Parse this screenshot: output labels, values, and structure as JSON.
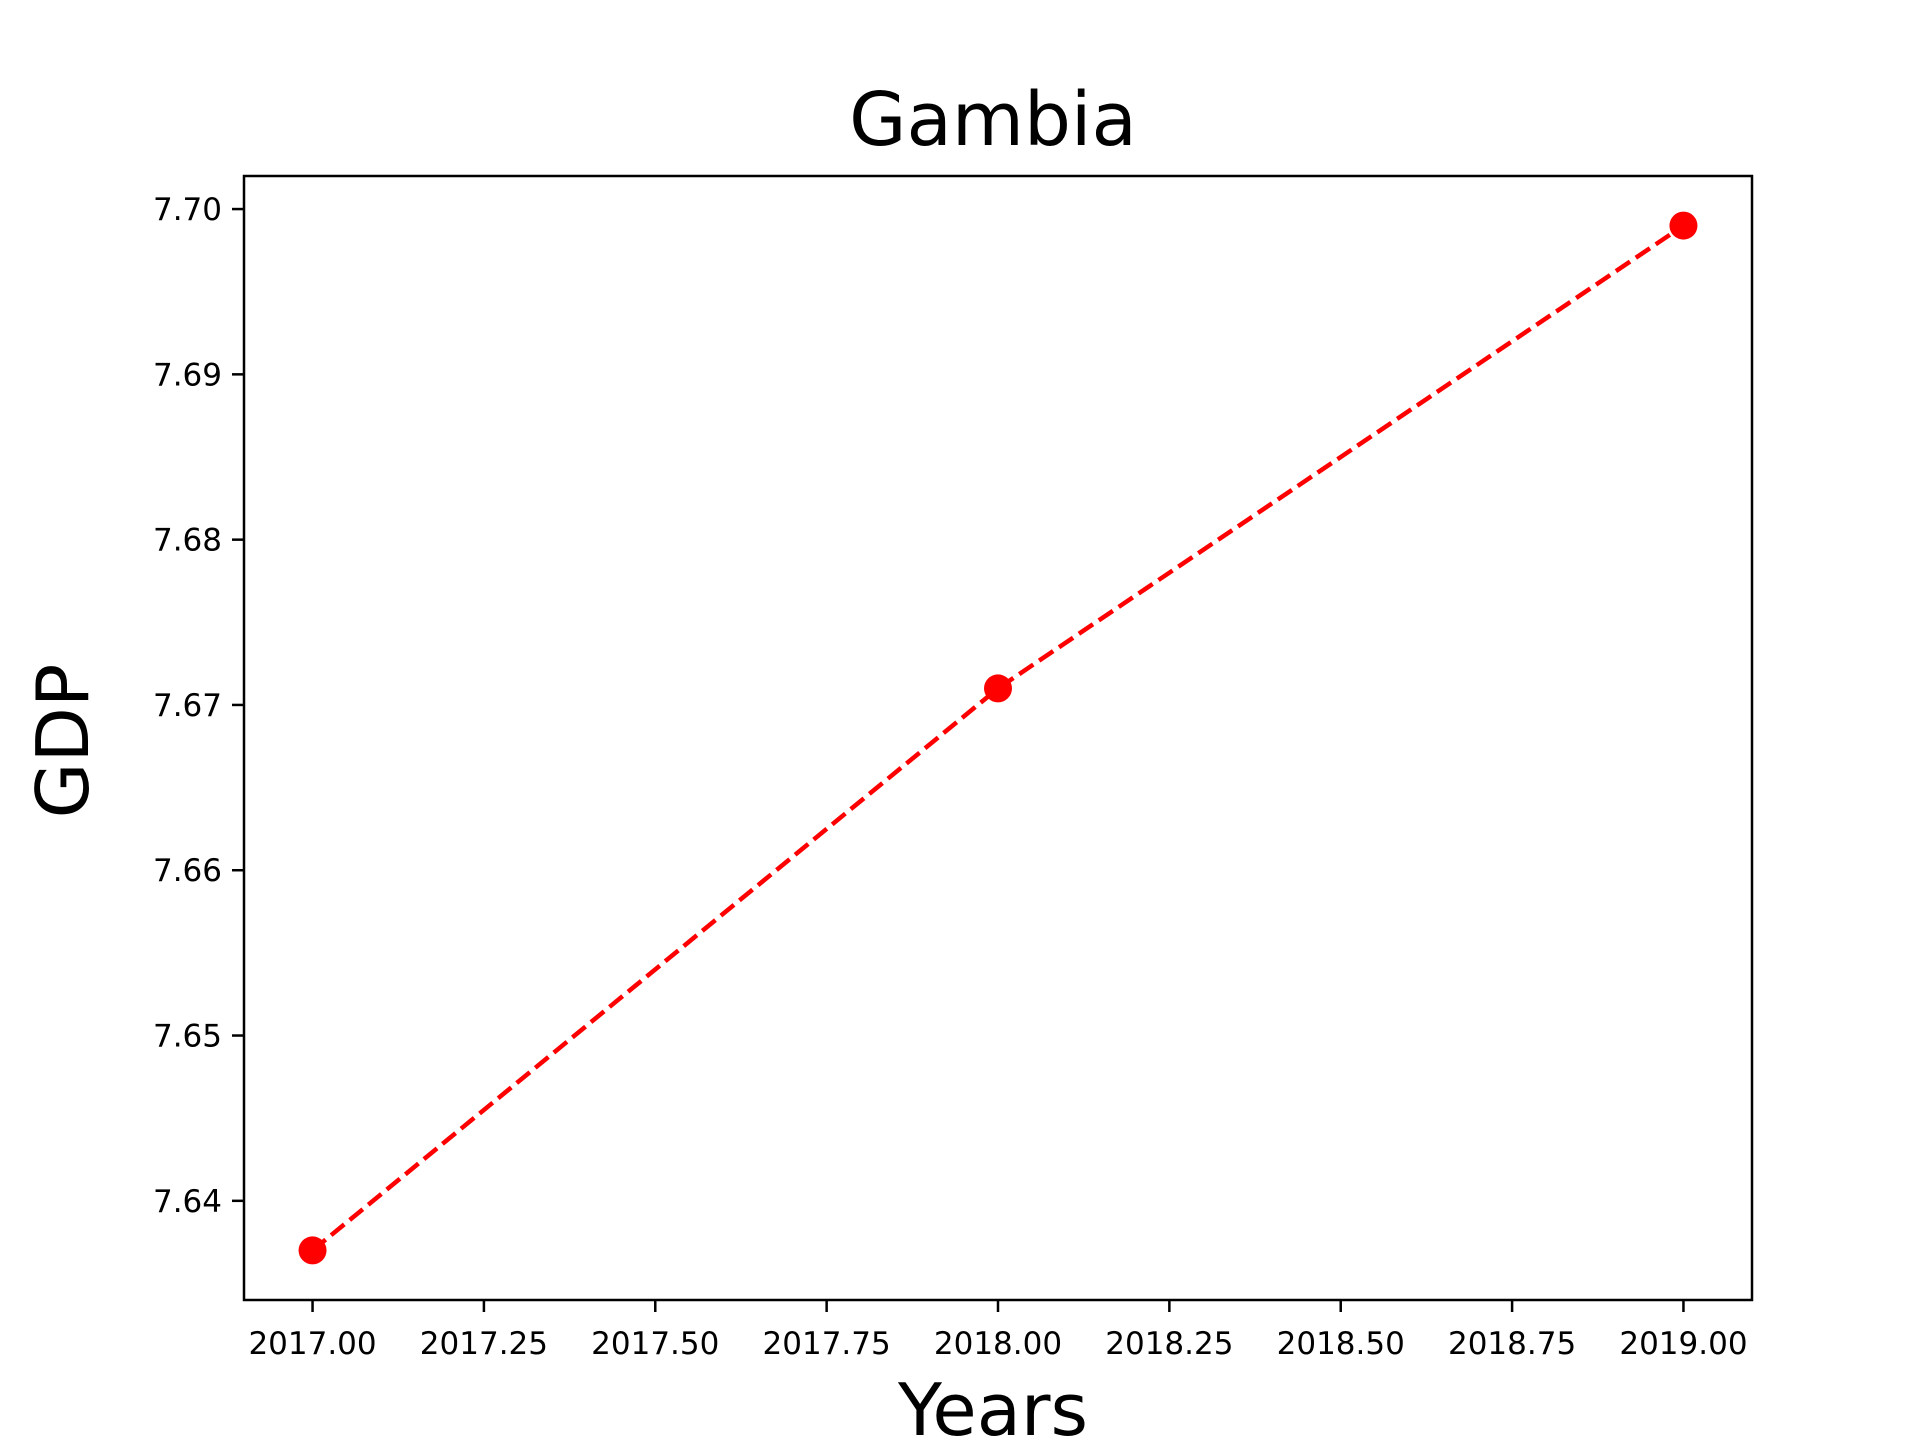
{
  "chart_data": {
    "type": "line",
    "title": "Gambia",
    "xlabel": "Years",
    "ylabel": "GDP",
    "xlim": [
      2016.9,
      2019.1
    ],
    "ylim": [
      7.634,
      7.702
    ],
    "x_ticks": [
      2017.0,
      2017.25,
      2017.5,
      2017.75,
      2018.0,
      2018.25,
      2018.5,
      2018.75,
      2019.0
    ],
    "x_tick_labels": [
      "2017.00",
      "2017.25",
      "2017.50",
      "2017.75",
      "2018.00",
      "2018.25",
      "2018.50",
      "2018.75",
      "2019.00"
    ],
    "y_ticks": [
      7.64,
      7.65,
      7.66,
      7.67,
      7.68,
      7.69,
      7.7
    ],
    "y_tick_labels": [
      "7.64",
      "7.65",
      "7.66",
      "7.67",
      "7.68",
      "7.69",
      "7.70"
    ],
    "grid": false,
    "series": [
      {
        "x": [
          2017,
          2018,
          2019
        ],
        "values": [
          7.637,
          7.671,
          7.699
        ],
        "color": "#ff0000",
        "line_style": "dashed",
        "marker": "circle"
      }
    ]
  }
}
